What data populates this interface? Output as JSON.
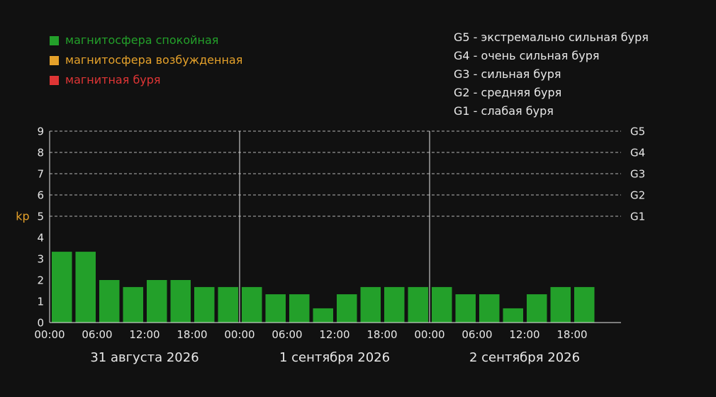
{
  "legend": {
    "items": [
      {
        "label": "магнитосфера спокойная",
        "color": "#23a02a"
      },
      {
        "label": "магнитосфера возбужденная",
        "color": "#e5a12a"
      },
      {
        "label": "магнитная буря",
        "color": "#df3535"
      }
    ]
  },
  "storm_scale": [
    {
      "code": "G5",
      "description": "экстремально сильная буря"
    },
    {
      "code": "G4",
      "description": "очень сильная буря"
    },
    {
      "code": "G3",
      "description": "сильная буря"
    },
    {
      "code": "G2",
      "description": "средняя буря"
    },
    {
      "code": "G1",
      "description": "слабая буря"
    }
  ],
  "chart_data": {
    "type": "bar",
    "ylabel": "kp",
    "ylim": [
      0,
      9
    ],
    "yticks": [
      "0",
      "1",
      "2",
      "3",
      "4",
      "5",
      "6",
      "7",
      "8",
      "9"
    ],
    "g_levels": [
      {
        "label": "G1",
        "value": 5
      },
      {
        "label": "G2",
        "value": 6
      },
      {
        "label": "G3",
        "value": 7
      },
      {
        "label": "G4",
        "value": 8
      },
      {
        "label": "G5",
        "value": 9
      }
    ],
    "x_tick_labels": [
      "00:00",
      "06:00",
      "12:00",
      "18:00",
      "00:00",
      "06:00",
      "12:00",
      "18:00",
      "00:00",
      "06:00",
      "12:00",
      "18:00"
    ],
    "days": [
      {
        "label": "31 августа 2026",
        "values": [
          3.33,
          3.33,
          2.0,
          1.67,
          2.0,
          2.0,
          1.67,
          1.67
        ]
      },
      {
        "label": "1 сентября 2026",
        "values": [
          1.67,
          1.33,
          1.33,
          0.67,
          1.33,
          1.67,
          1.67,
          1.67
        ]
      },
      {
        "label": "2 сентября 2026",
        "values": [
          1.67,
          1.33,
          1.33,
          0.67,
          1.33,
          1.67,
          1.67
        ]
      }
    ],
    "bar_color": "#23a02a",
    "grid": true,
    "legend_position": "top-left"
  }
}
